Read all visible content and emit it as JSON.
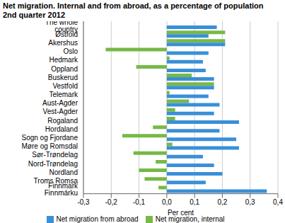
{
  "chart_data": {
    "type": "bar",
    "orientation": "horizontal",
    "title": "Net migration. Internal and from abroad, as a percentage of population",
    "subtitle": "2nd quarter 2012",
    "x_label": "Per cent",
    "categories": [
      "The whole country",
      "Østfold",
      "Akershus",
      "Oslo",
      "Hedmark",
      "Oppland",
      "Buskerud",
      "Vestfold",
      "Telemark",
      "Aust-Agder",
      "Vest-Agder",
      "Rogaland",
      "Hordaland",
      "Sogn og Fjordane",
      "Møre og Romsdal",
      "Sør-Trøndelag",
      "Nord-Trøndelag",
      "Nordland",
      "Troms Romsa",
      "Finnmark Finnmárku"
    ],
    "series": [
      {
        "name": "Net migration, internal",
        "color": "#76b947",
        "values": [
          0,
          0.21,
          0.21,
          -0.22,
          0.01,
          -0.11,
          0.09,
          0.17,
          0.01,
          0.08,
          0.03,
          0.03,
          -0.05,
          -0.16,
          0.02,
          -0.12,
          -0.04,
          -0.1,
          -0.08,
          -0.03
        ]
      },
      {
        "name": "Net migration from abroad",
        "color": "#3a8fd8",
        "values": [
          0.18,
          0.15,
          0.21,
          0.15,
          0.13,
          0.14,
          0.17,
          0.17,
          0.15,
          0.19,
          0.17,
          0.26,
          0.19,
          0.25,
          0.26,
          0.13,
          0.17,
          0.2,
          0.14,
          0.36
        ]
      }
    ],
    "xlim": [
      -0.3,
      0.4
    ],
    "xticks": [
      {
        "value": -0.3,
        "label": "-0,3"
      },
      {
        "value": -0.2,
        "label": "-0,2"
      },
      {
        "value": -0.1,
        "label": "-0,1"
      },
      {
        "value": 0,
        "label": "0,0"
      },
      {
        "value": 0.1,
        "label": "0,1"
      },
      {
        "value": 0.2,
        "label": "0,2"
      },
      {
        "value": 0.3,
        "label": "0,3"
      },
      {
        "value": 0.4,
        "label": "0,4"
      }
    ],
    "grid": true,
    "legend": "bottom"
  }
}
